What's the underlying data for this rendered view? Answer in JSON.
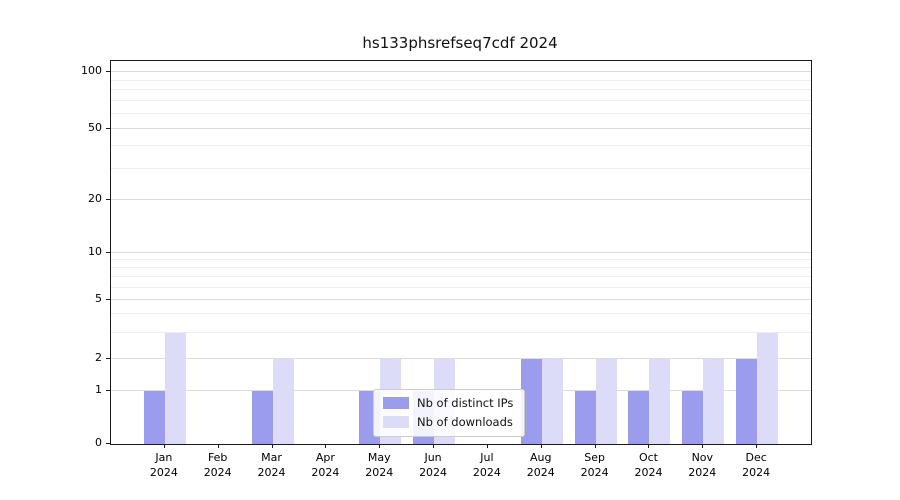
{
  "chart_data": {
    "type": "bar",
    "title": "hs133phsrefseq7cdf 2024",
    "categories": [
      "Jan",
      "Feb",
      "Mar",
      "Apr",
      "May",
      "Jun",
      "Jul",
      "Aug",
      "Sep",
      "Oct",
      "Nov",
      "Dec"
    ],
    "year_label": "2024",
    "series": [
      {
        "name": "Nb of distinct IPs",
        "color": "#9c9cec",
        "values": [
          1,
          0,
          1,
          0,
          1,
          1,
          0,
          2,
          1,
          1,
          1,
          2
        ]
      },
      {
        "name": "Nb of downloads",
        "color": "#dcdcf8",
        "values": [
          3,
          0,
          2,
          0,
          2,
          2,
          0,
          2,
          2,
          2,
          2,
          3
        ]
      }
    ],
    "yticks": [
      0,
      1,
      2,
      5,
      10,
      20,
      50,
      100
    ],
    "minor_yticks": [
      3,
      4,
      6,
      7,
      8,
      9,
      30,
      40,
      60,
      70,
      80,
      90
    ],
    "ylim": [
      0,
      100
    ],
    "yscale": "log-like",
    "grid": "horizontal",
    "legend_position": "lower center"
  }
}
